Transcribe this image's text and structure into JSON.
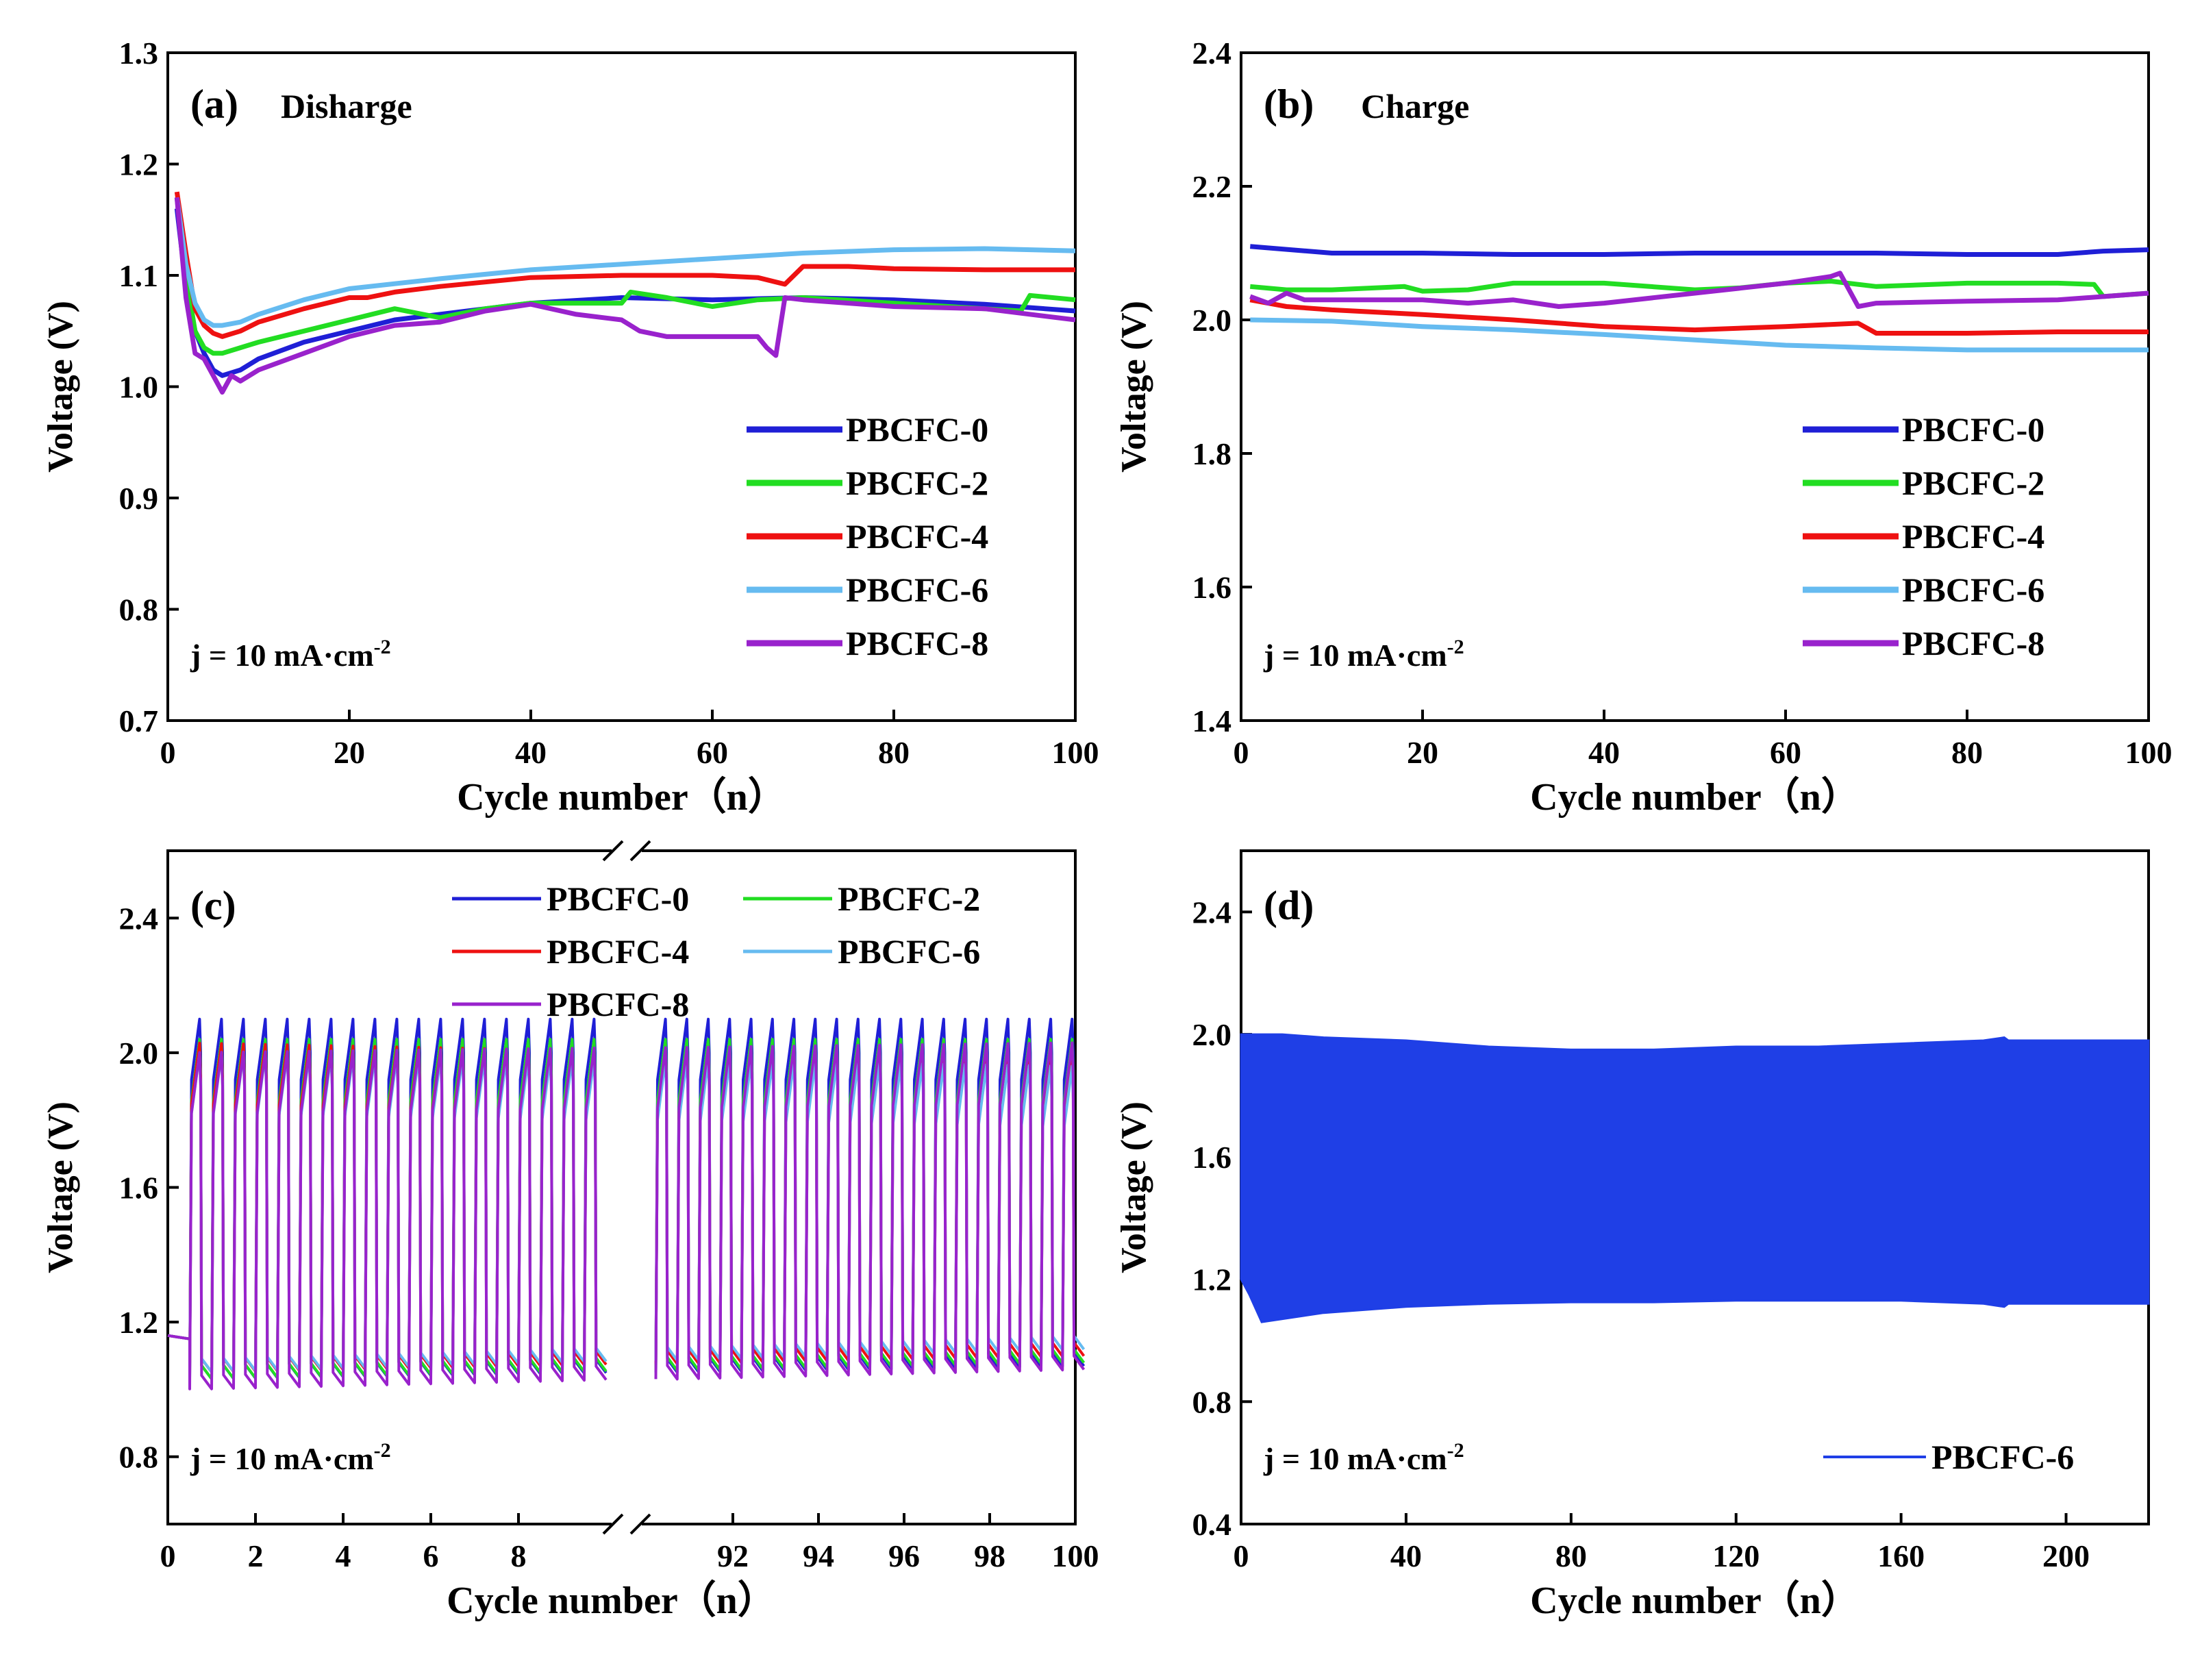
{
  "colors": {
    "PBCFC-0": "#1f1fd6",
    "PBCFC-2": "#22dd22",
    "PBCFC-4": "#ee1111",
    "PBCFC-6": "#66bbf0",
    "PBCFC-8": "#9922cc",
    "panel_d_fill": "#1f3fe6"
  },
  "chart_data": [
    {
      "panel": "(a)",
      "type": "line",
      "title": "Disharge",
      "xlabel": "Cycle number（n）",
      "ylabel": "Voltage (V)",
      "xlim": [
        0,
        100
      ],
      "ylim": [
        0.7,
        1.3
      ],
      "xticks": [
        "0",
        "20",
        "40",
        "60",
        "80",
        "100"
      ],
      "yticks": [
        "0.7",
        "0.8",
        "0.9",
        "1.0",
        "1.1",
        "1.2",
        "1.3"
      ],
      "annotation": "j = 10 mA·cm",
      "annotation_sup": "-2",
      "legend_position": "bottom-right",
      "series": [
        {
          "name": "PBCFC-0",
          "x": [
            1,
            2,
            3,
            4,
            5,
            6,
            8,
            10,
            15,
            20,
            25,
            30,
            40,
            50,
            60,
            70,
            80,
            90,
            100
          ],
          "values": [
            1.16,
            1.09,
            1.05,
            1.03,
            1.015,
            1.01,
            1.015,
            1.025,
            1.04,
            1.05,
            1.06,
            1.065,
            1.075,
            1.08,
            1.078,
            1.08,
            1.078,
            1.074,
            1.068
          ]
        },
        {
          "name": "PBCFC-2",
          "x": [
            1,
            2,
            3,
            4,
            5,
            6,
            8,
            10,
            15,
            20,
            25,
            30,
            35,
            40,
            50,
            51,
            55,
            60,
            65,
            70,
            80,
            90,
            94,
            95,
            100
          ],
          "values": [
            1.17,
            1.1,
            1.05,
            1.035,
            1.03,
            1.03,
            1.035,
            1.04,
            1.05,
            1.06,
            1.07,
            1.062,
            1.07,
            1.075,
            1.075,
            1.085,
            1.08,
            1.072,
            1.078,
            1.08,
            1.075,
            1.07,
            1.068,
            1.082,
            1.078
          ]
        },
        {
          "name": "PBCFC-4",
          "x": [
            1,
            2,
            3,
            4,
            5,
            6,
            8,
            10,
            15,
            20,
            22,
            25,
            30,
            40,
            50,
            60,
            65,
            68,
            70,
            75,
            80,
            90,
            100
          ],
          "values": [
            1.175,
            1.12,
            1.07,
            1.055,
            1.048,
            1.045,
            1.05,
            1.058,
            1.07,
            1.08,
            1.08,
            1.085,
            1.09,
            1.098,
            1.1,
            1.1,
            1.098,
            1.092,
            1.108,
            1.108,
            1.106,
            1.105,
            1.105
          ]
        },
        {
          "name": "PBCFC-6",
          "x": [
            1,
            2,
            3,
            4,
            5,
            6,
            8,
            10,
            15,
            20,
            30,
            40,
            50,
            60,
            70,
            80,
            90,
            100
          ],
          "values": [
            1.17,
            1.11,
            1.075,
            1.06,
            1.055,
            1.055,
            1.058,
            1.065,
            1.078,
            1.088,
            1.097,
            1.105,
            1.11,
            1.115,
            1.12,
            1.123,
            1.124,
            1.122
          ]
        },
        {
          "name": "PBCFC-8",
          "x": [
            1,
            2,
            3,
            4,
            5,
            6,
            7,
            8,
            10,
            15,
            20,
            25,
            30,
            35,
            40,
            45,
            50,
            52,
            55,
            60,
            65,
            66,
            67,
            68,
            70,
            80,
            90,
            100
          ],
          "values": [
            1.17,
            1.08,
            1.03,
            1.025,
            1.01,
            0.995,
            1.01,
            1.005,
            1.015,
            1.03,
            1.045,
            1.055,
            1.058,
            1.068,
            1.074,
            1.065,
            1.06,
            1.05,
            1.045,
            1.045,
            1.045,
            1.035,
            1.028,
            1.08,
            1.078,
            1.072,
            1.07,
            1.06
          ]
        }
      ]
    },
    {
      "panel": "(b)",
      "type": "line",
      "title": "Charge",
      "xlabel": "Cycle number（n）",
      "ylabel": "Voltage (V)",
      "xlim": [
        0,
        100
      ],
      "ylim": [
        1.4,
        2.4
      ],
      "xticks": [
        "0",
        "20",
        "40",
        "60",
        "80",
        "100"
      ],
      "yticks": [
        "1.4",
        "1.6",
        "1.8",
        "2.0",
        "2.2",
        "2.4"
      ],
      "annotation": "j = 10 mA·cm",
      "annotation_sup": "-2",
      "legend_position": "bottom-right",
      "series": [
        {
          "name": "PBCFC-0",
          "x": [
            1,
            10,
            20,
            30,
            40,
            50,
            60,
            70,
            80,
            90,
            95,
            100
          ],
          "values": [
            2.11,
            2.1,
            2.1,
            2.098,
            2.098,
            2.1,
            2.1,
            2.1,
            2.098,
            2.098,
            2.103,
            2.105
          ]
        },
        {
          "name": "PBCFC-2",
          "x": [
            1,
            5,
            10,
            18,
            20,
            25,
            30,
            40,
            50,
            55,
            60,
            65,
            70,
            80,
            90,
            94,
            95,
            100
          ],
          "values": [
            2.05,
            2.045,
            2.045,
            2.05,
            2.043,
            2.045,
            2.055,
            2.055,
            2.045,
            2.048,
            2.055,
            2.058,
            2.05,
            2.055,
            2.055,
            2.053,
            2.035,
            2.04
          ]
        },
        {
          "name": "PBCFC-4",
          "x": [
            1,
            5,
            10,
            20,
            30,
            40,
            50,
            60,
            68,
            70,
            80,
            90,
            100
          ],
          "values": [
            2.03,
            2.02,
            2.015,
            2.008,
            2.0,
            1.99,
            1.985,
            1.99,
            1.995,
            1.98,
            1.98,
            1.982,
            1.982
          ]
        },
        {
          "name": "PBCFC-6",
          "x": [
            1,
            10,
            20,
            30,
            40,
            50,
            60,
            70,
            80,
            90,
            100
          ],
          "values": [
            2.0,
            1.998,
            1.99,
            1.985,
            1.978,
            1.97,
            1.962,
            1.958,
            1.955,
            1.955,
            1.955
          ]
        },
        {
          "name": "PBCFC-8",
          "x": [
            1,
            3,
            5,
            7,
            10,
            20,
            25,
            30,
            35,
            40,
            50,
            60,
            65,
            66,
            68,
            70,
            80,
            90,
            100
          ],
          "values": [
            2.035,
            2.025,
            2.04,
            2.03,
            2.03,
            2.03,
            2.025,
            2.03,
            2.02,
            2.025,
            2.04,
            2.055,
            2.065,
            2.07,
            2.02,
            2.025,
            2.028,
            2.03,
            2.04
          ]
        }
      ]
    },
    {
      "panel": "(c)",
      "type": "line",
      "xlabel": "Cycle number（n）",
      "ylabel": "Voltage (V)",
      "ylim": [
        0.6,
        2.6
      ],
      "xticks": [
        "0",
        "2",
        "4",
        "6",
        "8",
        "92",
        "94",
        "96",
        "98",
        "100"
      ],
      "yticks": [
        "0.8",
        "1.2",
        "1.6",
        "2.0",
        "2.4"
      ],
      "x_break": true,
      "segments": [
        {
          "from": 0,
          "to": 10
        },
        {
          "from": 90,
          "to": 100
        }
      ],
      "annotation": "j = 10 mA·cm",
      "annotation_sup": "-2",
      "legend_position": "top",
      "series": [
        {
          "name": "PBCFC-0",
          "charge_first": 2.1,
          "charge_last": 2.1,
          "discharge_first": 1.03,
          "discharge_last": 1.07
        },
        {
          "name": "PBCFC-2",
          "charge_first": 2.04,
          "charge_last": 2.04,
          "discharge_first": 1.03,
          "discharge_last": 1.08
        },
        {
          "name": "PBCFC-4",
          "charge_first": 2.03,
          "charge_last": 1.98,
          "discharge_first": 1.05,
          "discharge_last": 1.1
        },
        {
          "name": "PBCFC-6",
          "charge_first": 2.0,
          "charge_last": 1.96,
          "discharge_first": 1.05,
          "discharge_last": 1.12
        },
        {
          "name": "PBCFC-8",
          "charge_first": 2.0,
          "charge_last": 2.03,
          "discharge_first": 1.0,
          "discharge_last": 1.06
        }
      ]
    },
    {
      "panel": "(d)",
      "type": "area",
      "xlabel": "Cycle number（n）",
      "ylabel": "Voltage (V)",
      "xlim": [
        0,
        220
      ],
      "ylim": [
        0.4,
        2.6
      ],
      "xticks": [
        "0",
        "40",
        "80",
        "120",
        "160",
        "200"
      ],
      "yticks": [
        "0.4",
        "0.8",
        "1.2",
        "1.6",
        "2.0",
        "2.4"
      ],
      "annotation": "j = 10 mA·cm",
      "annotation_sup": "-2",
      "legend_position": "bottom-right",
      "series": [
        {
          "name": "PBCFC-6",
          "x": [
            0,
            2,
            5,
            10,
            20,
            40,
            60,
            80,
            100,
            120,
            140,
            160,
            180,
            185,
            186,
            200,
            220
          ],
          "upper": [
            2.0,
            2.0,
            2.0,
            2.0,
            1.99,
            1.98,
            1.96,
            1.95,
            1.95,
            1.96,
            1.96,
            1.97,
            1.98,
            1.99,
            1.98,
            1.98,
            1.98
          ],
          "lower": [
            1.2,
            1.15,
            1.06,
            1.07,
            1.09,
            1.11,
            1.12,
            1.125,
            1.125,
            1.13,
            1.13,
            1.13,
            1.12,
            1.11,
            1.12,
            1.12,
            1.12
          ]
        }
      ]
    }
  ]
}
